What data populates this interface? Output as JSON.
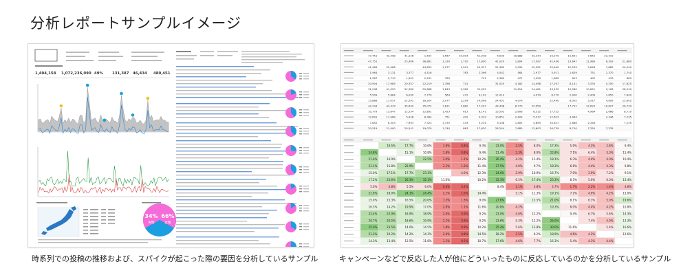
{
  "page": {
    "title": "分析レポートサンプルイメージ",
    "caption_left": "時系列での投稿の推移および、スパイクが起こった際の要因を分析しているサンプル",
    "caption_right": "キャンペーンなどで反応した人が他にどういったものに反応しているのかを分析しているサンプル"
  },
  "left_report": {
    "kpis": [
      "1,404,158",
      "1,072,236,090",
      "49%",
      "131,387",
      "46,434",
      "480,451"
    ],
    "pie": {
      "left_value": "34%",
      "left_label": "男性",
      "right_value": "66%",
      "right_label": "女性"
    },
    "colors": {
      "blue": "#1a9fe0",
      "pink": "#f56bd8",
      "green": "#2a9d4a",
      "red": "#e04040",
      "gray": "#b8b8b8"
    }
  },
  "right_report": {
    "top_table": {
      "rows": [
        [
          "47,751",
          "42,408",
          "41,226",
          "1,504",
          "1,567",
          "20,904",
          "51,048",
          "5,509",
          "19,888",
          "42,244",
          "10,379",
          "12,651",
          "7,652",
          "22,319"
        ],
        [
          "47,751",
          "",
          "25,406",
          "38,861",
          "1,130",
          "1,710",
          "17,890",
          "41,020",
          "1,804",
          "17,097",
          "42,436",
          "13,647",
          "11,989",
          "6,303",
          "21,880"
        ],
        [
          "41,469",
          "29,486",
          "",
          "44,853",
          "1,077",
          "1,501",
          "20,327",
          "52,389",
          "1,095",
          "22,591",
          "35,640",
          "12,539",
          "5,628",
          "7,885",
          "20,540"
        ],
        [
          "1,964",
          "3,131",
          "3,377",
          "4,416",
          "",
          "763",
          "2,396",
          "4,542",
          "564",
          "2,977",
          "5,911",
          "1,629",
          "751",
          "1,370",
          "1,740"
        ],
        [
          "1,967",
          "2,710",
          "1,901",
          "2,201",
          "763",
          "",
          "741",
          "2,389",
          "472",
          "1,299",
          "1,680",
          "613",
          "402",
          "433",
          "860"
        ],
        [
          "20,904",
          "17,985",
          "20,357",
          "22,219",
          "1,396",
          "741",
          "",
          "31,025",
          "4,182",
          "14,098",
          "17,297",
          "8,141",
          "3,333",
          "5,250",
          "17,825"
        ],
        [
          "31,048",
          "41,020",
          "52,380",
          "50,868",
          "1,843",
          "2,369",
          "31,025",
          "",
          "11,614",
          "24,461",
          "43,432",
          "15,580",
          "10,651",
          "9,108",
          "28,240"
        ],
        [
          "5,509",
          "5,884",
          "6,090",
          "7,770",
          "564",
          "472",
          "4,102",
          "11,014",
          "",
          "4,979",
          "8,770",
          "2,900",
          "2,406",
          "1,850",
          "7,640"
        ],
        [
          "13,888",
          "17,057",
          "22,591",
          "18,924",
          "2,077",
          "1,299",
          "14,098",
          "24,451",
          "4,979",
          "",
          "22,490",
          "8,302",
          "5,317",
          "4,895",
          "12,602"
        ],
        [
          "42,244",
          "43,433",
          "35,640",
          "35,072",
          "1,811",
          "1,682",
          "17,297",
          "43,408",
          "8,770",
          "22,959",
          "",
          "17,722",
          "12,623",
          "10,627",
          "26,739"
        ],
        [
          "10,779",
          "13,647",
          "12,534",
          "12,891",
          "1,423",
          "613",
          "8,141",
          "15,502",
          "2,808",
          "8,312",
          "17,722",
          "",
          "4,964",
          "2,686",
          "8,710"
        ],
        [
          "12,691",
          "11,089",
          "5,928",
          "8,364",
          "751",
          "402",
          "3,333",
          "10,651",
          "2,409",
          "5,317",
          "12,623",
          "4,964",
          "",
          "2,346",
          "7,235"
        ],
        [
          "7,652",
          "6,303",
          "7,993",
          "7,323",
          "1,370",
          "433",
          "5,234",
          "9,108",
          "1,805",
          "4,895",
          "10,627",
          "2,686",
          "2,346",
          "",
          "7,235"
        ],
        [
          "20,519",
          "21,000",
          "20,541",
          "19,070",
          "1,740",
          "863",
          "17,620",
          "28,244",
          "7,680",
          "12,603",
          "26,739",
          "8,710",
          "7,350",
          "7,235",
          ""
        ]
      ]
    },
    "heat_table": {
      "rows": [
        [
          "",
          "19.5%",
          "17.7%",
          "10.6%",
          "1.9%",
          "0.8%",
          "9.3%",
          "23.0%",
          "2.5%",
          "8.0%",
          "17.3%",
          "5.9%",
          "4.3%",
          "2.8%",
          "9.4%"
        ],
        [
          "24.8%",
          "",
          "15.1%",
          "10.8%",
          "1.8%",
          "0.8%",
          "9.4%",
          "21.4%",
          "2.3%",
          "8.0%",
          "22.8%",
          "7.1%",
          "6.4%",
          "3.3%",
          "11.4%"
        ],
        [
          "21.6%",
          "14.9%",
          "",
          "22.5%",
          "2.0%",
          "1.2%",
          "10.2%",
          "26.4%",
          "4.2%",
          "11.4%",
          "18.1%",
          "6.3%",
          "4.4%",
          "4.0%",
          "10.4%"
        ],
        [
          "21.1%",
          "15.8%",
          "22.9%",
          "",
          "2.1%",
          "1.2%",
          "11.4%",
          "27.5%",
          "4.0%",
          "9.7%",
          "18.3%",
          "6.6%",
          "4.4%",
          "4.3%",
          "9.8%"
        ],
        [
          "15.0%",
          "17.1%",
          "17.7%",
          "23.1%",
          "",
          "4.0%",
          "12.3%",
          "24.6%",
          "2.9%",
          "10.9%",
          "16.7%",
          "7.0%",
          "3.9%",
          "7.2%",
          "9.1%"
        ],
        [
          "17.2%",
          "23.6%",
          "26.3%",
          "32.1%",
          "11.0%",
          "",
          "10.2%",
          "32.3%",
          "6.5%",
          "17.4%",
          "23.3%",
          "8.5%",
          "5.6%",
          "6.0%",
          "13.4%"
        ],
        [
          "5.6%",
          "4.8%",
          "5.5%",
          "6.0%",
          "0.4%",
          "0.2%",
          "",
          "8.4%",
          "1.1%",
          "3.8%",
          "4.7%",
          "1.7%",
          "2.2%",
          "1.4%",
          "4.8%"
        ],
        [
          "21.6%",
          "18.0%",
          "24.1%",
          "24.4%",
          "2.1%",
          "1.0%",
          "14.4%",
          "",
          "5.1%",
          "11.3%",
          "19.1%",
          "7.2%",
          "4.9%",
          "4.2%",
          "13.0%"
        ],
        [
          "15.0%",
          "15.3%",
          "16.5%",
          "20.0%",
          "1.5%",
          "1.3%",
          "9.0%",
          "27.6%",
          "",
          "13.5%",
          "21.0%",
          "8.1%",
          "6.3%",
          "5.0%",
          "19.6%"
        ],
        [
          "16.3%",
          "14.2%",
          "19.9%",
          "17.0%",
          "2.0%",
          "1.1%",
          "11.6%",
          "20.8%",
          "4.2%",
          "",
          "19.3%",
          "8.0%",
          "4.4%",
          "4.2%",
          "10.8%"
        ],
        [
          "22.4%",
          "22.9%",
          "18.9%",
          "18.9%",
          "2.0%",
          "0.9%",
          "9.2%",
          "23.0%",
          "4.0%",
          "12.2%",
          "",
          "9.4%",
          "6.7%",
          "5.6%",
          "14.3%"
        ],
        [
          "20.7%",
          "20.5%",
          "18.6%",
          "19.9%",
          "2.1%",
          "0.9%",
          "9.2%",
          "23.6%",
          "5.3%",
          "12.2%",
          "26.0%",
          "",
          "7.4%",
          "4.0%",
          "13.3%"
        ],
        [
          "25.0%",
          "23.5%",
          "14.0%",
          "14.5%",
          "1.8%",
          "0.8%",
          "10.2%",
          "25.4%",
          "5.6%",
          "13.8%",
          "30.0%",
          "11.6%",
          "",
          "5.4%",
          "16.6%"
        ],
        [
          "21.3%",
          "19.2%",
          "14.2%",
          "14.2%",
          "2.4%",
          "0.8%",
          "14.5%",
          "18.2%",
          "2.5%",
          "8.2%",
          "18.9%",
          "4.6%",
          "4.2%",
          "",
          "12.6%"
        ],
        [
          "14.3%",
          "13.4%",
          "12.5%",
          "11.8%",
          "1.1%",
          "0.5%",
          "10.7%",
          "17.6%",
          "4.6%",
          "7.7%",
          "16.3%",
          "5.4%",
          "4.3%",
          "4.4%",
          ""
        ]
      ]
    }
  }
}
